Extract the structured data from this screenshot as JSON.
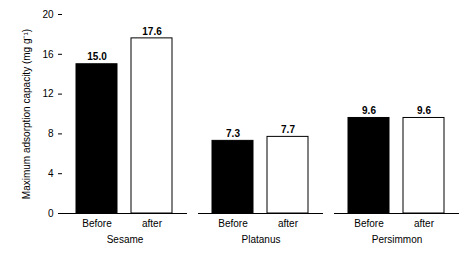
{
  "chart_data": {
    "type": "bar",
    "y_label": "Maximum adsorption capacity (mg g⁻¹)",
    "categories": [
      "Sesame",
      "Platanus",
      "Persimmon"
    ],
    "series": [
      {
        "name": "Before",
        "color": "#000000",
        "values": [
          15,
          7.3,
          9.6
        ],
        "value_labels": [
          "15.0",
          "7.3",
          "9.6"
        ]
      },
      {
        "name": "after",
        "color": "#ffffff",
        "values": [
          17.6,
          7.7,
          9.6
        ]
      }
    ],
    "ylim": [
      0,
      20
    ],
    "yticks": [
      0,
      4,
      8,
      12,
      16,
      20
    ],
    "grid": false,
    "data_labels": true
  }
}
